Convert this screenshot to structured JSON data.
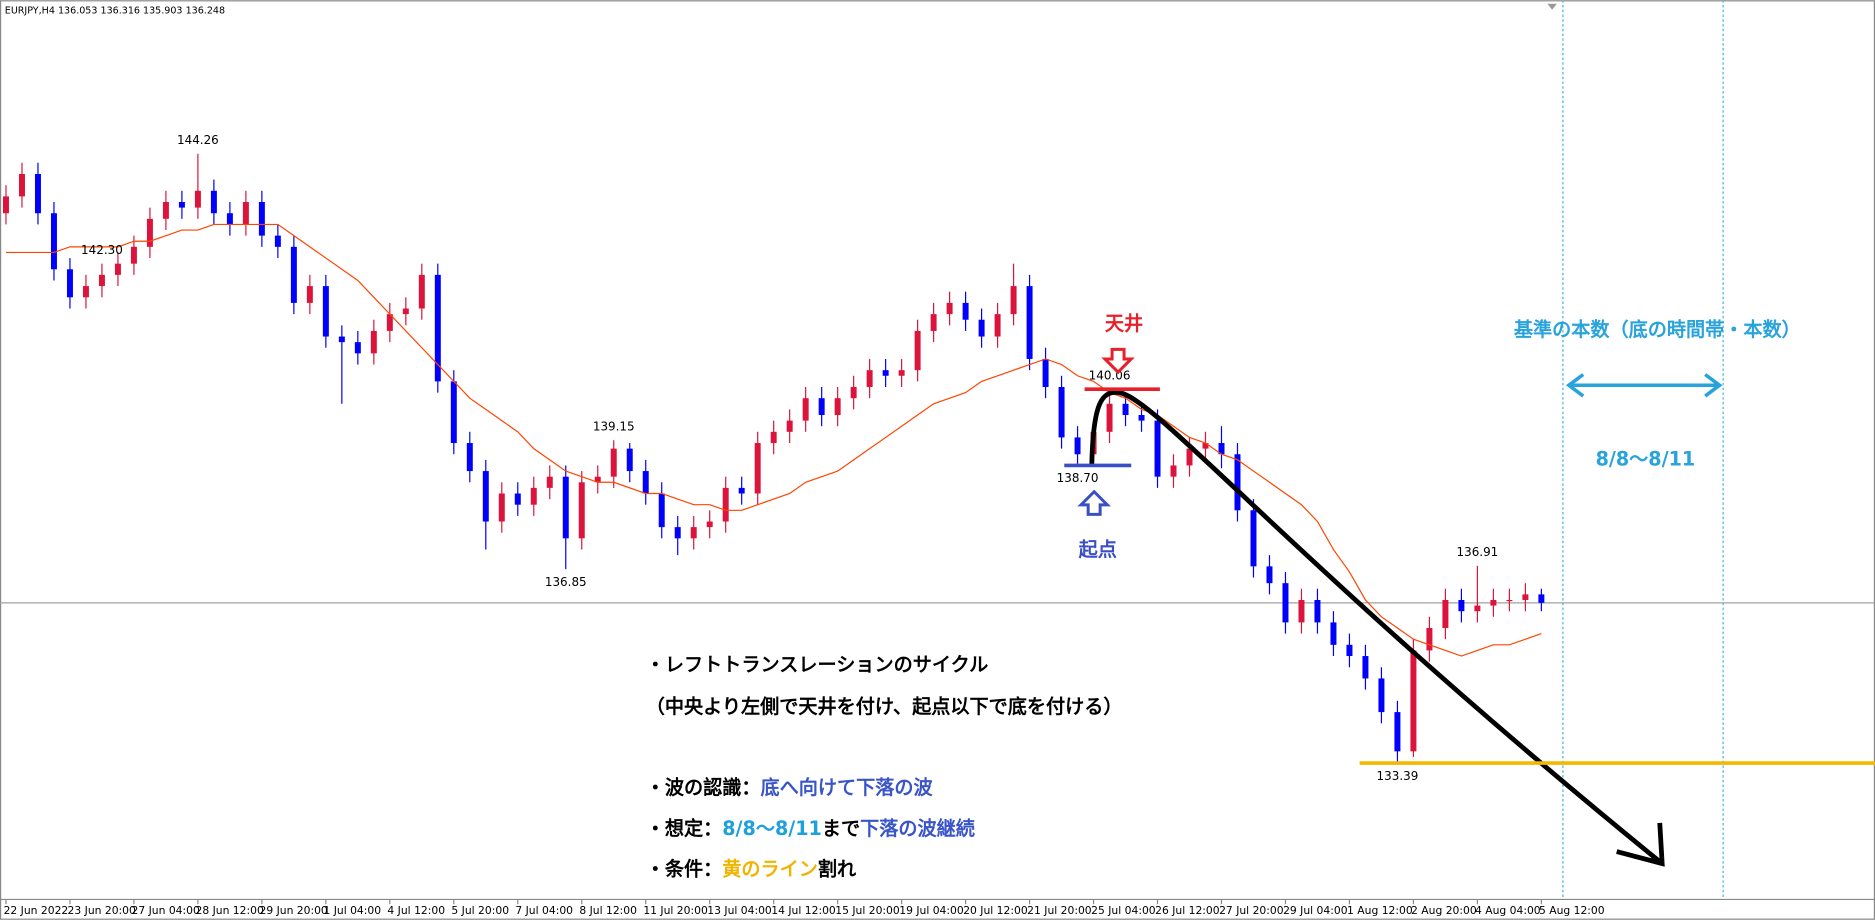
{
  "header": {
    "symbol": "EURJPY,H4",
    "ohlc": [
      136.053,
      136.316,
      135.903,
      136.248
    ]
  },
  "chart_data": {
    "type": "candlestick",
    "x_labels": [
      "22 Jun 2022",
      "23 Jun 20:00",
      "27 Jun 04:00",
      "28 Jun 12:00",
      "29 Jun 20:00",
      "1 Jul 04:00",
      "4 Jul 12:00",
      "5 Jul 20:00",
      "7 Jul 04:00",
      "8 Jul 12:00",
      "11 Jul 20:00",
      "13 Jul 04:00",
      "14 Jul 12:00",
      "15 Jul 20:00",
      "19 Jul 04:00",
      "20 Jul 12:00",
      "21 Jul 20:00",
      "25 Jul 04:00",
      "26 Jul 12:00",
      "27 Jul 20:00",
      "29 Jul 04:00",
      "1 Aug 12:00",
      "2 Aug 20:00",
      "4 Aug 04:00",
      "5 Aug 12:00"
    ],
    "candles": [
      [
        143.2,
        143.7,
        143.0,
        143.5
      ],
      [
        143.5,
        144.1,
        143.3,
        143.9
      ],
      [
        143.9,
        144.1,
        143.0,
        143.2
      ],
      [
        143.2,
        143.4,
        142.0,
        142.2
      ],
      [
        142.2,
        142.4,
        141.5,
        141.7
      ],
      [
        141.7,
        142.1,
        141.5,
        141.9
      ],
      [
        141.9,
        142.3,
        141.7,
        142.1
      ],
      [
        142.1,
        142.5,
        141.9,
        142.3
      ],
      [
        142.3,
        142.8,
        142.1,
        142.6
      ],
      [
        142.6,
        143.3,
        142.4,
        143.1
      ],
      [
        143.1,
        143.6,
        142.9,
        143.4
      ],
      [
        143.4,
        143.6,
        143.1,
        143.3
      ],
      [
        143.3,
        144.26,
        143.1,
        143.6
      ],
      [
        143.6,
        143.8,
        143.0,
        143.2
      ],
      [
        143.2,
        143.4,
        142.8,
        143.0
      ],
      [
        143.0,
        143.6,
        142.8,
        143.4
      ],
      [
        143.4,
        143.6,
        142.6,
        142.8
      ],
      [
        142.8,
        143.0,
        142.4,
        142.6
      ],
      [
        142.6,
        142.8,
        141.4,
        141.6
      ],
      [
        141.6,
        142.1,
        141.4,
        141.9
      ],
      [
        141.9,
        142.1,
        140.8,
        141.0
      ],
      [
        141.0,
        141.2,
        139.8,
        140.9
      ],
      [
        140.9,
        141.1,
        140.5,
        140.7
      ],
      [
        140.7,
        141.3,
        140.5,
        141.1
      ],
      [
        141.1,
        141.6,
        140.9,
        141.4
      ],
      [
        141.4,
        141.7,
        141.2,
        141.5
      ],
      [
        141.5,
        142.3,
        141.3,
        142.1
      ],
      [
        142.1,
        142.3,
        140.0,
        140.2
      ],
      [
        140.2,
        140.4,
        138.9,
        139.1
      ],
      [
        139.1,
        139.3,
        138.4,
        138.6
      ],
      [
        138.6,
        138.8,
        137.2,
        137.7
      ],
      [
        137.7,
        138.4,
        137.5,
        138.2
      ],
      [
        138.2,
        138.4,
        137.8,
        138.0
      ],
      [
        138.0,
        138.5,
        137.8,
        138.3
      ],
      [
        138.3,
        138.7,
        138.1,
        138.5
      ],
      [
        138.5,
        138.7,
        136.85,
        137.4
      ],
      [
        137.4,
        138.6,
        137.2,
        138.4
      ],
      [
        138.4,
        138.7,
        138.2,
        138.5
      ],
      [
        138.5,
        139.15,
        138.3,
        139.0
      ],
      [
        139.0,
        139.1,
        138.4,
        138.6
      ],
      [
        138.6,
        138.8,
        138.0,
        138.2
      ],
      [
        138.2,
        138.4,
        137.4,
        137.6
      ],
      [
        137.6,
        137.8,
        137.1,
        137.4
      ],
      [
        137.4,
        137.8,
        137.2,
        137.6
      ],
      [
        137.6,
        137.9,
        137.4,
        137.7
      ],
      [
        137.7,
        138.5,
        137.5,
        138.3
      ],
      [
        138.3,
        138.5,
        138.0,
        138.2
      ],
      [
        138.2,
        139.3,
        138.0,
        139.1
      ],
      [
        139.1,
        139.5,
        138.9,
        139.3
      ],
      [
        139.3,
        139.7,
        139.1,
        139.5
      ],
      [
        139.5,
        140.1,
        139.3,
        139.9
      ],
      [
        139.9,
        140.1,
        139.4,
        139.6
      ],
      [
        139.6,
        140.1,
        139.4,
        139.9
      ],
      [
        139.9,
        140.3,
        139.7,
        140.1
      ],
      [
        140.1,
        140.6,
        139.9,
        140.4
      ],
      [
        140.4,
        140.6,
        140.1,
        140.3
      ],
      [
        140.3,
        140.6,
        140.1,
        140.4
      ],
      [
        140.4,
        141.3,
        140.2,
        141.1
      ],
      [
        141.1,
        141.6,
        140.9,
        141.4
      ],
      [
        141.4,
        141.8,
        141.2,
        141.6
      ],
      [
        141.6,
        141.8,
        141.1,
        141.3
      ],
      [
        141.3,
        141.5,
        140.8,
        141.0
      ],
      [
        141.0,
        141.6,
        140.8,
        141.4
      ],
      [
        141.4,
        142.3,
        141.2,
        141.9
      ],
      [
        141.9,
        142.1,
        140.4,
        140.6
      ],
      [
        140.6,
        140.8,
        139.9,
        140.1
      ],
      [
        140.1,
        140.3,
        139.0,
        139.2
      ],
      [
        139.2,
        139.4,
        138.7,
        138.9
      ],
      [
        138.9,
        139.5,
        138.75,
        139.3
      ],
      [
        139.3,
        140.06,
        139.1,
        139.8
      ],
      [
        139.8,
        140.0,
        139.4,
        139.6
      ],
      [
        139.6,
        139.8,
        139.3,
        139.5
      ],
      [
        139.5,
        139.7,
        138.3,
        138.5
      ],
      [
        138.5,
        138.9,
        138.3,
        138.7
      ],
      [
        138.7,
        139.2,
        138.5,
        139.0
      ],
      [
        139.0,
        139.3,
        138.8,
        139.1
      ],
      [
        139.1,
        139.4,
        138.65,
        138.9
      ],
      [
        138.9,
        139.1,
        137.7,
        137.9
      ],
      [
        137.9,
        138.1,
        136.7,
        136.9
      ],
      [
        136.9,
        137.1,
        136.4,
        136.6
      ],
      [
        136.6,
        136.8,
        135.7,
        135.9
      ],
      [
        135.9,
        136.5,
        135.7,
        136.3
      ],
      [
        136.3,
        136.5,
        135.7,
        135.9
      ],
      [
        135.9,
        136.1,
        135.3,
        135.5
      ],
      [
        135.5,
        135.7,
        135.1,
        135.3
      ],
      [
        135.3,
        135.5,
        134.7,
        134.9
      ],
      [
        134.9,
        135.1,
        134.1,
        134.3
      ],
      [
        134.3,
        134.5,
        133.39,
        133.6
      ],
      [
        133.6,
        135.6,
        133.5,
        135.4
      ],
      [
        135.4,
        136.0,
        135.2,
        135.8
      ],
      [
        135.8,
        136.5,
        135.6,
        136.3
      ],
      [
        136.3,
        136.5,
        135.9,
        136.1
      ],
      [
        136.1,
        136.91,
        135.9,
        136.2
      ],
      [
        136.2,
        136.5,
        136.0,
        136.3
      ],
      [
        136.3,
        136.5,
        136.1,
        136.3
      ],
      [
        136.3,
        136.6,
        136.1,
        136.4
      ],
      [
        136.4,
        136.5,
        136.1,
        136.25
      ]
    ],
    "up_color": "#dc143c",
    "down_color": "#0000ff",
    "ma": {
      "color": "#ff4500",
      "values": [
        142.5,
        142.5,
        142.5,
        142.5,
        142.6,
        142.6,
        142.6,
        142.6,
        142.7,
        142.7,
        142.8,
        142.9,
        142.9,
        143.0,
        143.0,
        143.0,
        143.0,
        143.0,
        142.8,
        142.6,
        142.4,
        142.2,
        142.0,
        141.7,
        141.4,
        141.1,
        140.8,
        140.5,
        140.2,
        139.9,
        139.7,
        139.5,
        139.3,
        139.0,
        138.8,
        138.6,
        138.5,
        138.4,
        138.4,
        138.3,
        138.2,
        138.2,
        138.1,
        138.0,
        138.0,
        137.9,
        137.9,
        138.0,
        138.1,
        138.2,
        138.4,
        138.5,
        138.6,
        138.8,
        139.0,
        139.2,
        139.4,
        139.6,
        139.8,
        139.9,
        140.0,
        140.2,
        140.3,
        140.4,
        140.5,
        140.6,
        140.5,
        140.3,
        140.2,
        140.0,
        139.9,
        139.7,
        139.6,
        139.4,
        139.2,
        139.1,
        138.9,
        138.8,
        138.6,
        138.4,
        138.2,
        138.0,
        137.7,
        137.2,
        136.8,
        136.3,
        136.0,
        135.8,
        135.6,
        135.5,
        135.4,
        135.3,
        135.4,
        135.5,
        135.5,
        135.6,
        135.7
      ]
    },
    "ylim": [
      131,
      147
    ],
    "extreme_labels": [
      "144.26",
      "139.15",
      "136.85",
      "142.30",
      "140.06",
      "138.70",
      "136.91",
      "133.39"
    ]
  },
  "annotations": {
    "top": "天井",
    "start": "起点",
    "range_title": "基準の本数（底の時間帯・本数）",
    "range": "8/8〜8/11"
  },
  "notes": {
    "cycle": "・レフトトランスレーションのサイクル",
    "cycle_note": "（中央より左側で天井を付け、起点以下で底を付ける）",
    "wave": {
      "label": "・波の認識：",
      "text": "底へ向けて下落の波"
    },
    "forecast": {
      "label": "・想定：",
      "range": "8/8〜8/11",
      "until": "まで",
      "text": "下落の波継続"
    },
    "condition": {
      "label": "・条件：",
      "text": "黄のライン",
      "suffix": "割れ"
    }
  }
}
